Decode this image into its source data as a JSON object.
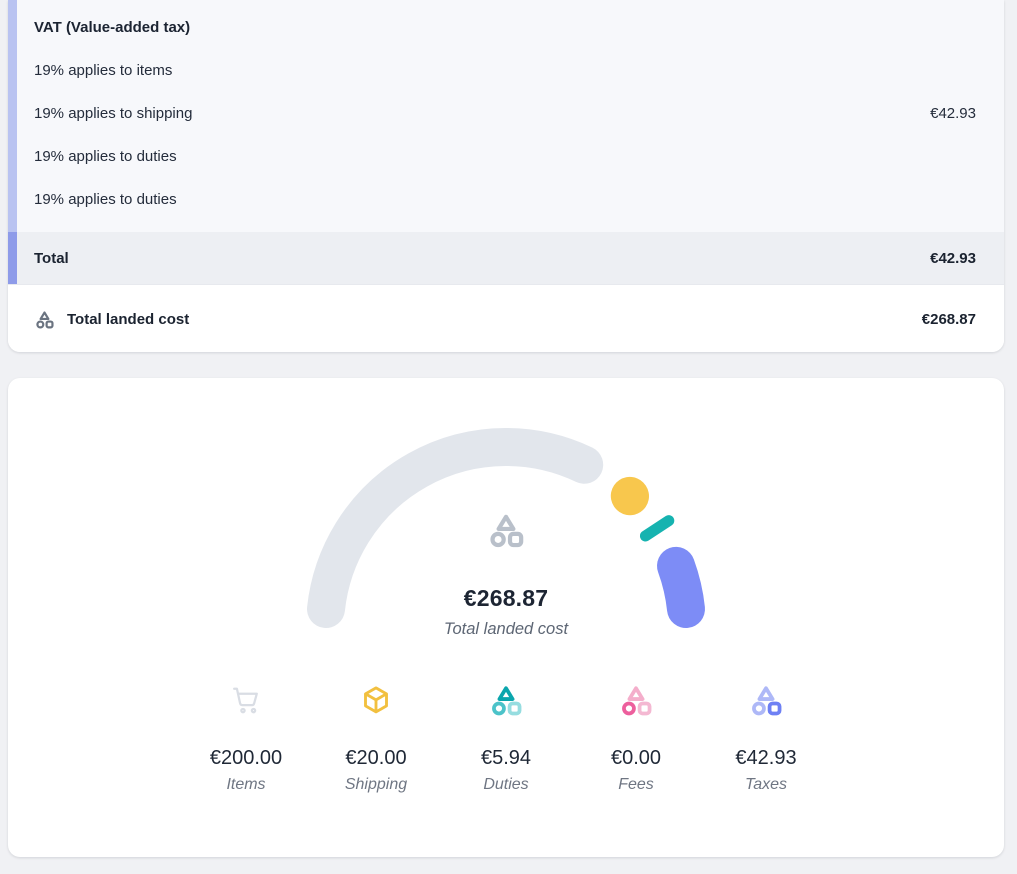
{
  "colors": {
    "page_bg": "#f0f1f4",
    "group_bg": "#f7f8fb",
    "group_accent": "#b9c3f1",
    "total_bg": "#edeff3",
    "total_accent": "#8e9be9",
    "text_primary": "#1b2330",
    "text_muted": "#6f7683",
    "landed_icon": "#6a7380",
    "center_icon": "#b9c0ca",
    "items_icon": "#d9dde4",
    "shipping_icon": "#f2c03f"
  },
  "tax_card": {
    "group_title": "VAT (Value-added tax)",
    "rows": [
      {
        "label": "19% applies to items",
        "value": ""
      },
      {
        "label": "19% applies to shipping",
        "value": "€42.93"
      },
      {
        "label": "19% applies to duties",
        "value": ""
      },
      {
        "label": "19% applies to duties",
        "value": ""
      }
    ],
    "total_row": {
      "label": "Total",
      "value": "€42.93"
    },
    "landed_row": {
      "label": "Total landed cost",
      "value": "€268.87"
    }
  },
  "chart_data": {
    "type": "gauge",
    "title": "Total landed cost",
    "center_value": "€268.87",
    "total_value": 268.87,
    "currency": "EUR",
    "arc_span_degrees": 180,
    "legend_position": "bottom",
    "segments": [
      {
        "name": "Items",
        "value": 200.0,
        "display": "€200.00",
        "color": "#e2e6ec",
        "icon": "cart"
      },
      {
        "name": "Shipping",
        "value": 20.0,
        "display": "€20.00",
        "color": "#f8c74d",
        "icon": "cube"
      },
      {
        "name": "Duties",
        "value": 5.94,
        "display": "€5.94",
        "color": "#16b3b0",
        "icon": "shapes",
        "icon_colors": {
          "triangle": "#0ba6ad",
          "circle": "#4cc3c9",
          "square": "#96dde0"
        }
      },
      {
        "name": "Fees",
        "value": 0.0,
        "display": "€0.00",
        "color": "#ee5f9e",
        "icon": "shapes",
        "icon_colors": {
          "triangle": "#f4aecb",
          "circle": "#ed5f9d",
          "square": "#f4b8d2"
        }
      },
      {
        "name": "Taxes",
        "value": 42.93,
        "display": "€42.93",
        "color": "#7d8cf6",
        "icon": "shapes",
        "icon_colors": {
          "triangle": "#aeb8f7",
          "circle": "#aeb8f7",
          "square": "#6e80f4"
        }
      }
    ]
  }
}
